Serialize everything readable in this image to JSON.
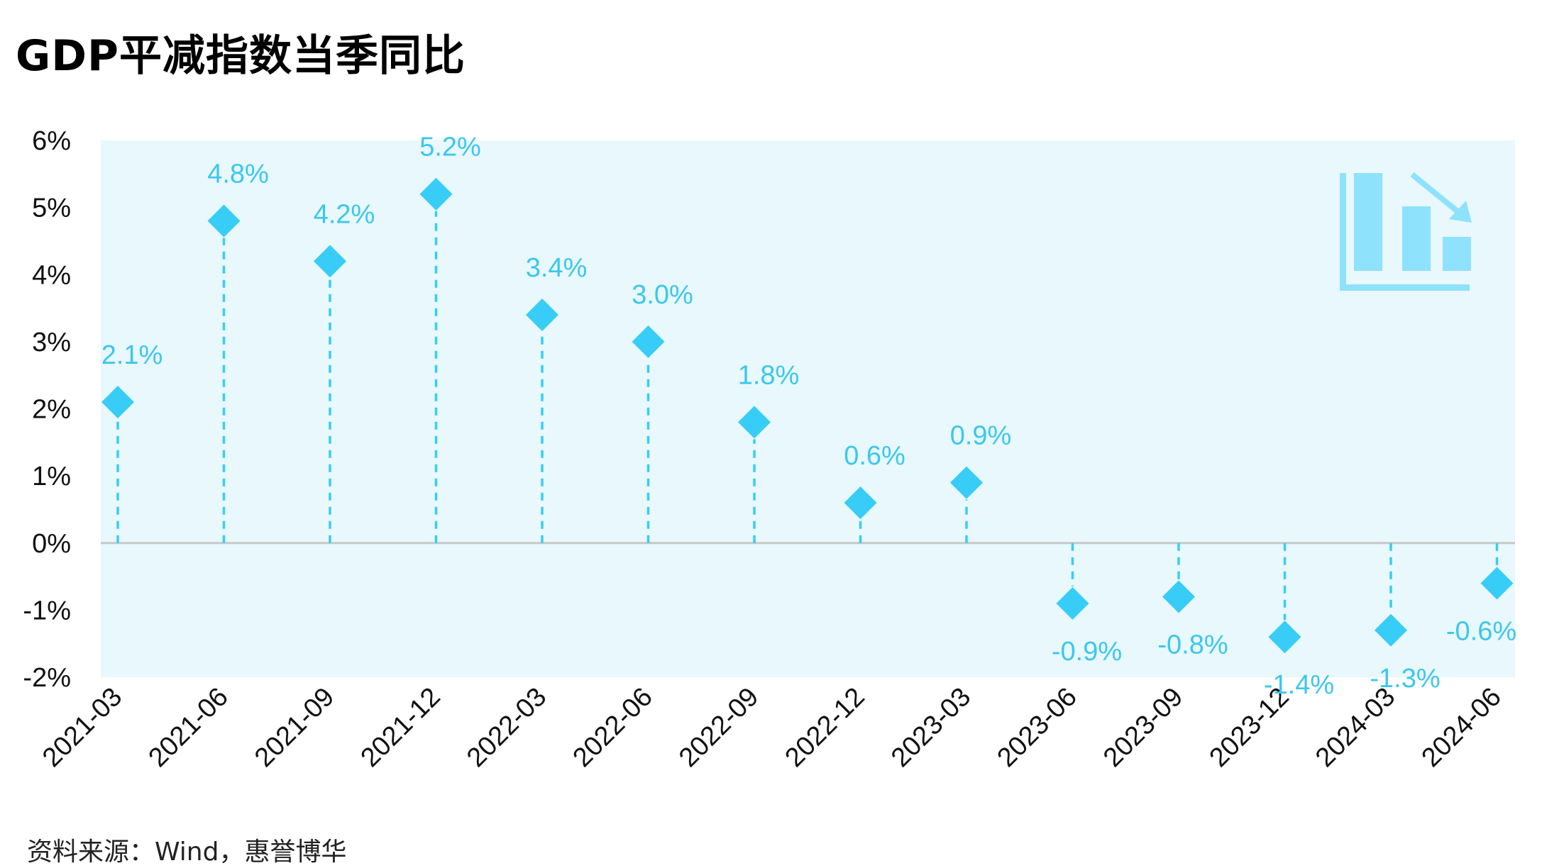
{
  "title": "GDP平减指数当季同比",
  "source": "资料来源：Wind，惠誉博华",
  "colors": {
    "plot_bg": "#e8f8fc",
    "marker": "#37cdf7",
    "stem": "#37cdf7",
    "label": "#3cc7ee",
    "zero_line": "#c8c8c8",
    "icon": "#8fe2fb"
  },
  "decoration_icon": "bar-chart-declining-icon",
  "chart_data": {
    "type": "scatter",
    "style": "lollipop-diamond",
    "title": "GDP平减指数当季同比",
    "xlabel": "",
    "ylabel": "",
    "ylim": [
      -2,
      6
    ],
    "yticks": [
      "6%",
      "5%",
      "4%",
      "3%",
      "2%",
      "1%",
      "0%",
      "-1%",
      "-2%"
    ],
    "ytick_values": [
      6,
      5,
      4,
      3,
      2,
      1,
      0,
      -1,
      -2
    ],
    "grid": false,
    "categories": [
      "2021-03",
      "2021-06",
      "2021-09",
      "2021-12",
      "2022-03",
      "2022-06",
      "2022-09",
      "2022-12",
      "2023-03",
      "2023-06",
      "2023-09",
      "2023-12",
      "2024-03",
      "2024-06"
    ],
    "values": [
      2.1,
      4.8,
      4.2,
      5.2,
      3.4,
      3.0,
      1.8,
      0.6,
      0.9,
      -0.9,
      -0.8,
      -1.4,
      -1.3,
      -0.6
    ],
    "labels": [
      "2.1%",
      "4.8%",
      "4.2%",
      "5.2%",
      "3.4%",
      "3.0%",
      "1.8%",
      "0.6%",
      "0.9%",
      "-0.9%",
      "-0.8%",
      "-1.4%",
      "-1.3%",
      "-0.6%"
    ]
  }
}
